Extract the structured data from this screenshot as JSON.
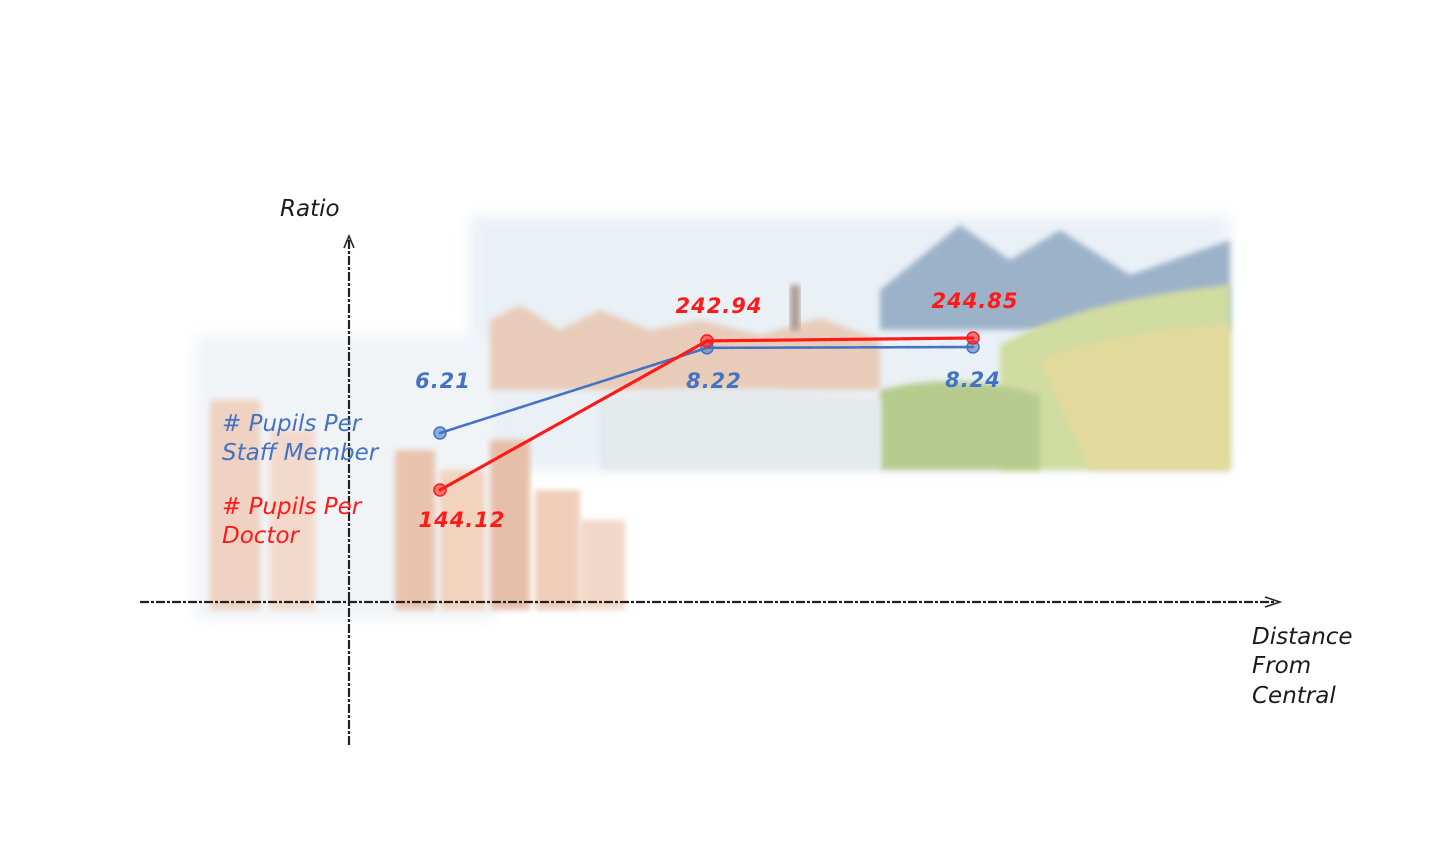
{
  "chart_data": {
    "type": "line",
    "ylabel": "Ratio",
    "xlabel_lines": [
      "Distance",
      "From",
      "Central"
    ],
    "x": [
      1,
      2,
      3
    ],
    "series": [
      {
        "name_lines": [
          "# Pupils Per",
          "Staff Member"
        ],
        "values": [
          6.21,
          8.22,
          8.24
        ],
        "value_labels": [
          "6.21",
          "8.22",
          "8.24"
        ],
        "color": "#4472c4"
      },
      {
        "name_lines": [
          "# Pupils Per",
          "Doctor"
        ],
        "values": [
          144.12,
          242.94,
          244.85
        ],
        "value_labels": [
          "144.12",
          "242.94",
          "244.85"
        ],
        "color": "#ff1a1a"
      }
    ]
  },
  "colors": {
    "axis": "#222222",
    "sky": "#dde9f3",
    "mountain": "#8da9c4",
    "field_green": "#b9cd7e",
    "field_yellow": "#e2d48e",
    "building": "#e7c0a8"
  }
}
